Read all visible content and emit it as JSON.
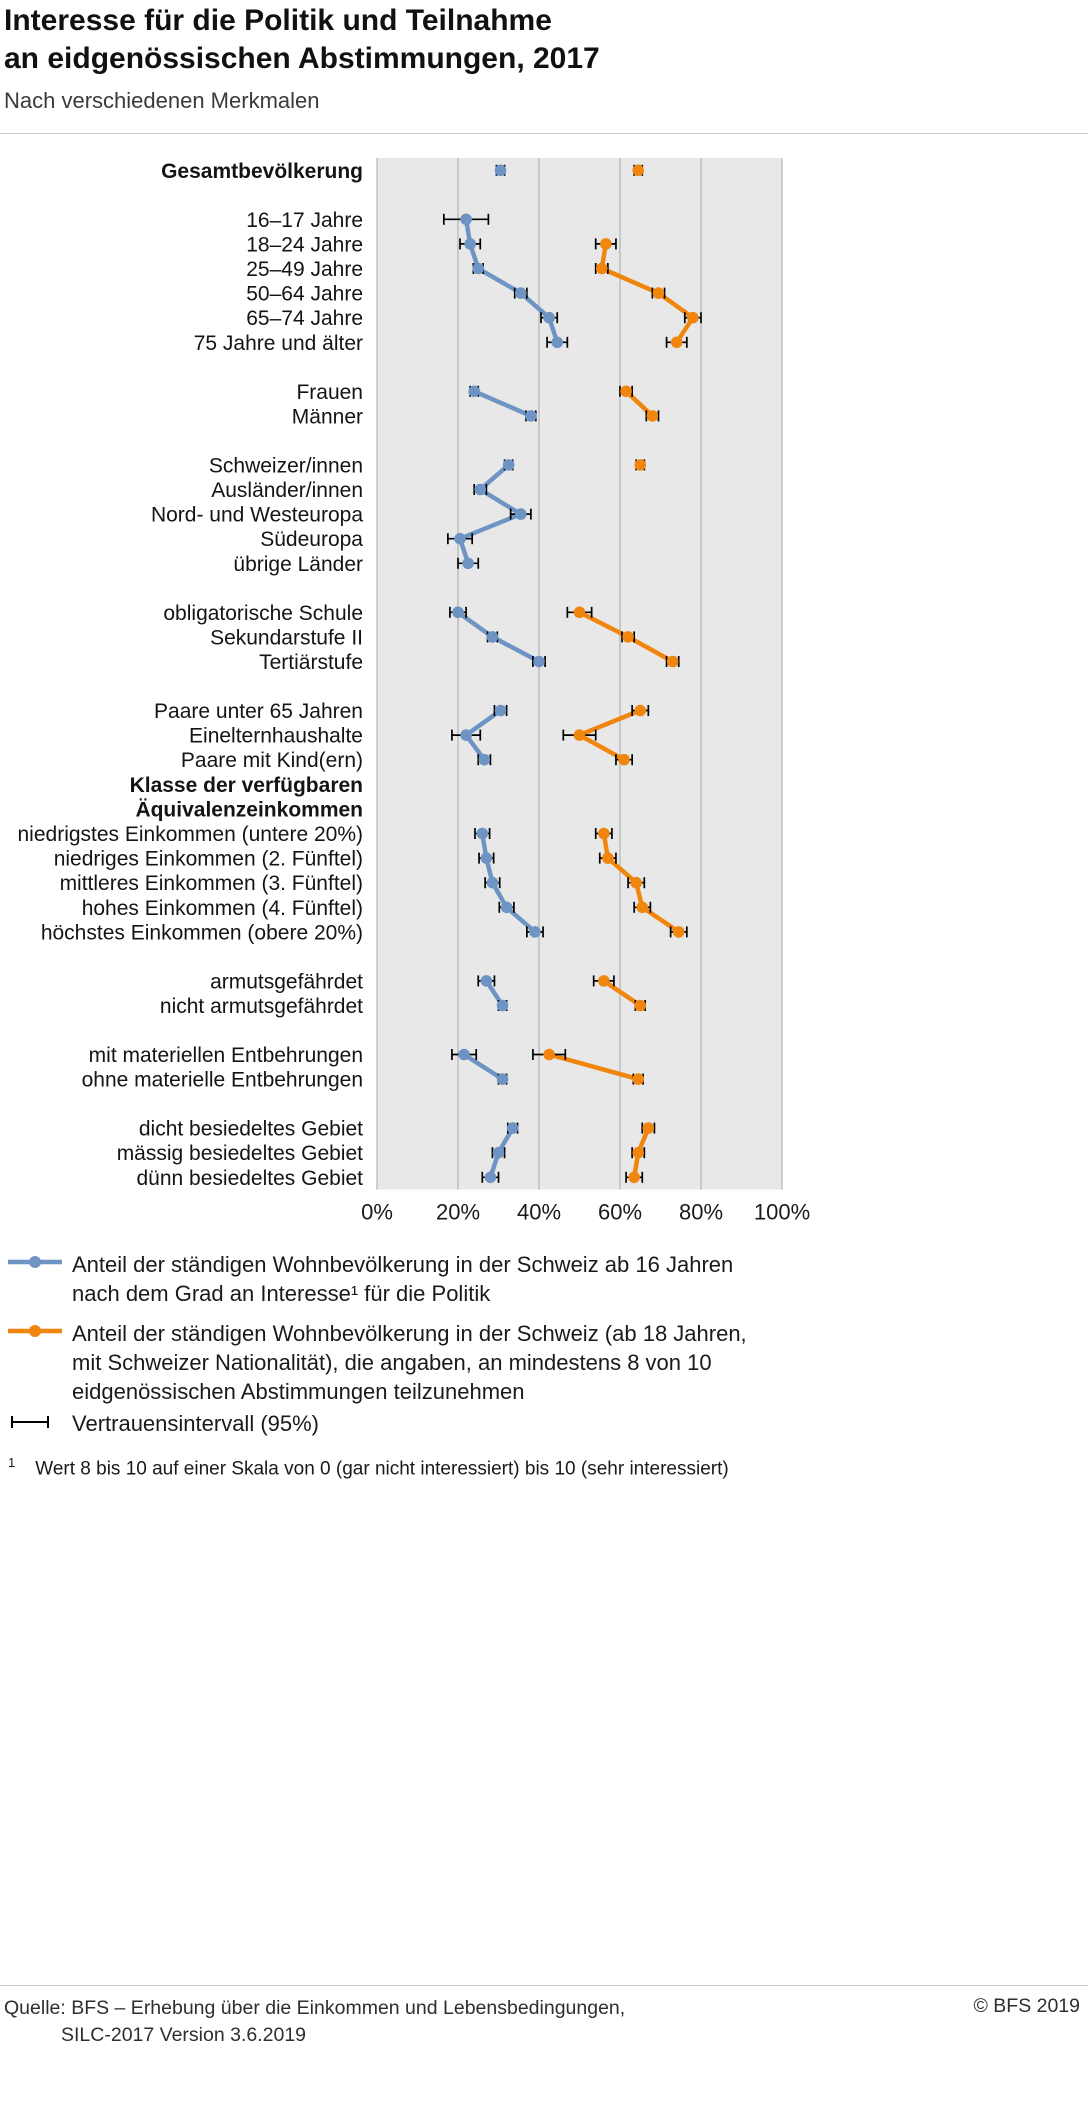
{
  "header": {
    "title_line1": "Interesse für die Politik und Teilnahme",
    "title_line2": "an eidgenössischen Abstimmungen, 2017",
    "subtitle": "Nach verschiedenen Merkmalen"
  },
  "chart_data": {
    "type": "scatter",
    "subtype": "horizontal dot plot with 95% confidence intervals",
    "x_axis": {
      "min": 0,
      "max": 100,
      "ticks": [
        0,
        20,
        40,
        60,
        80,
        100
      ],
      "tick_labels": [
        "0%",
        "20%",
        "40%",
        "60%",
        "80%",
        "100%"
      ],
      "grid": true
    },
    "series": [
      {
        "id": "interesse",
        "color": "#6E94C4"
      },
      {
        "id": "teilnahme",
        "color": "#F0860D"
      }
    ],
    "rows": [
      {
        "type": "data",
        "group": 0,
        "label": "Gesamtbevölkerung",
        "bold": true,
        "interesse": 30.5,
        "interesse_ci": 1.0,
        "teilnahme": 64.5,
        "teilnahme_ci": 1.0
      },
      {
        "type": "spacer"
      },
      {
        "type": "data",
        "group": 1,
        "label": "16–17 Jahre",
        "interesse": 22,
        "interesse_ci": 5.5
      },
      {
        "type": "data",
        "group": 1,
        "label": "18–24 Jahre",
        "interesse": 23,
        "interesse_ci": 2.5,
        "teilnahme": 56.5,
        "teilnahme_ci": 2.5
      },
      {
        "type": "data",
        "group": 1,
        "label": "25–49 Jahre",
        "interesse": 25,
        "interesse_ci": 1.2,
        "teilnahme": 55.5,
        "teilnahme_ci": 1.5
      },
      {
        "type": "data",
        "group": 1,
        "label": "50–64 Jahre",
        "interesse": 35.5,
        "interesse_ci": 1.5,
        "teilnahme": 69.5,
        "teilnahme_ci": 1.5
      },
      {
        "type": "data",
        "group": 1,
        "label": "65–74 Jahre",
        "interesse": 42.5,
        "interesse_ci": 2,
        "teilnahme": 78,
        "teilnahme_ci": 2
      },
      {
        "type": "data",
        "group": 1,
        "label": "75 Jahre und älter",
        "interesse": 44.5,
        "interesse_ci": 2.5,
        "teilnahme": 74,
        "teilnahme_ci": 2.5
      },
      {
        "type": "spacer"
      },
      {
        "type": "data",
        "group": 2,
        "label": "Frauen",
        "interesse": 24,
        "interesse_ci": 1,
        "teilnahme": 61.5,
        "teilnahme_ci": 1.5
      },
      {
        "type": "data",
        "group": 2,
        "label": "Männer",
        "interesse": 38,
        "interesse_ci": 1.2,
        "teilnahme": 68,
        "teilnahme_ci": 1.5
      },
      {
        "type": "spacer"
      },
      {
        "type": "data",
        "group": 3,
        "label": "Schweizer/innen",
        "interesse": 32.5,
        "interesse_ci": 1,
        "teilnahme": 65,
        "teilnahme_ci": 1
      },
      {
        "type": "data",
        "group": 3,
        "label": "Ausländer/innen",
        "interesse": 25.5,
        "interesse_ci": 1.5
      },
      {
        "type": "data",
        "group": 3,
        "label": "Nord- und Westeuropa",
        "interesse": 35.5,
        "interesse_ci": 2.5
      },
      {
        "type": "data",
        "group": 3,
        "label": "Südeuropa",
        "interesse": 20.5,
        "interesse_ci": 3
      },
      {
        "type": "data",
        "group": 3,
        "label": "übrige Länder",
        "interesse": 22.5,
        "interesse_ci": 2.5
      },
      {
        "type": "spacer"
      },
      {
        "type": "data",
        "group": 4,
        "label": "obligatorische Schule",
        "interesse": 20,
        "interesse_ci": 2,
        "teilnahme": 50,
        "teilnahme_ci": 3
      },
      {
        "type": "data",
        "group": 4,
        "label": "Sekundarstufe II",
        "interesse": 28.5,
        "interesse_ci": 1.2,
        "teilnahme": 62,
        "teilnahme_ci": 1.5
      },
      {
        "type": "data",
        "group": 4,
        "label": "Tertiärstufe",
        "interesse": 40,
        "interesse_ci": 1.5,
        "teilnahme": 73,
        "teilnahme_ci": 1.5
      },
      {
        "type": "spacer"
      },
      {
        "type": "data",
        "group": 5,
        "label": "Paare unter 65 Jahren",
        "interesse": 30.5,
        "interesse_ci": 1.5,
        "teilnahme": 65,
        "teilnahme_ci": 2
      },
      {
        "type": "data",
        "group": 5,
        "label": "Einelternhaushalte",
        "interesse": 22,
        "interesse_ci": 3.5,
        "teilnahme": 50,
        "teilnahme_ci": 4
      },
      {
        "type": "data",
        "group": 5,
        "label": "Paare mit Kind(ern)",
        "interesse": 26.5,
        "interesse_ci": 1.5,
        "teilnahme": 61,
        "teilnahme_ci": 2
      },
      {
        "type": "header",
        "lines": [
          "Klasse der verfügbaren",
          "Äquivalenzeinkommen"
        ]
      },
      {
        "type": "data",
        "group": 6,
        "label": "niedrigstes Einkommen (untere 20%)",
        "interesse": 26,
        "interesse_ci": 1.8,
        "teilnahme": 56,
        "teilnahme_ci": 2
      },
      {
        "type": "data",
        "group": 6,
        "label": "niedriges Einkommen (2. Fünftel)",
        "interesse": 27,
        "interesse_ci": 1.8,
        "teilnahme": 57,
        "teilnahme_ci": 2
      },
      {
        "type": "data",
        "group": 6,
        "label": "mittleres Einkommen (3. Fünftel)",
        "interesse": 28.5,
        "interesse_ci": 1.8,
        "teilnahme": 64,
        "teilnahme_ci": 2
      },
      {
        "type": "data",
        "group": 6,
        "label": "hohes Einkommen (4. Fünftel)",
        "interesse": 32,
        "interesse_ci": 1.8,
        "teilnahme": 65.5,
        "teilnahme_ci": 2
      },
      {
        "type": "data",
        "group": 6,
        "label": "höchstes Einkommen (obere 20%)",
        "interesse": 39,
        "interesse_ci": 2,
        "teilnahme": 74.5,
        "teilnahme_ci": 2
      },
      {
        "type": "spacer"
      },
      {
        "type": "data",
        "group": 7,
        "label": "armutsgefährdet",
        "interesse": 27,
        "interesse_ci": 2,
        "teilnahme": 56,
        "teilnahme_ci": 2.5
      },
      {
        "type": "data",
        "group": 7,
        "label": "nicht armutsgefährdet",
        "interesse": 31,
        "interesse_ci": 1,
        "teilnahme": 65,
        "teilnahme_ci": 1.2
      },
      {
        "type": "spacer"
      },
      {
        "type": "data",
        "group": 8,
        "label": "mit materiellen Entbehrungen",
        "interesse": 21.5,
        "interesse_ci": 3,
        "teilnahme": 42.5,
        "teilnahme_ci": 4
      },
      {
        "type": "data",
        "group": 8,
        "label": "ohne materielle Entbehrungen",
        "interesse": 31,
        "interesse_ci": 1,
        "teilnahme": 64.5,
        "teilnahme_ci": 1.2
      },
      {
        "type": "spacer"
      },
      {
        "type": "data",
        "group": 9,
        "label": "dicht besiedeltes Gebiet",
        "interesse": 33.5,
        "interesse_ci": 1.2,
        "teilnahme": 67,
        "teilnahme_ci": 1.5
      },
      {
        "type": "data",
        "group": 9,
        "label": "mässig besiedeltes Gebiet",
        "interesse": 30,
        "interesse_ci": 1.5,
        "teilnahme": 64.5,
        "teilnahme_ci": 1.5
      },
      {
        "type": "data",
        "group": 9,
        "label": "dünn besiedeltes Gebiet",
        "interesse": 28,
        "interesse_ci": 2,
        "teilnahme": 63.5,
        "teilnahme_ci": 2
      }
    ]
  },
  "legend": {
    "items": [
      {
        "series": "interesse",
        "lines": [
          "Anteil der ständigen Wohnbevölkerung in der Schweiz ab 16 Jahren",
          "nach dem Grad an Interesse¹ für die Politik"
        ]
      },
      {
        "series": "teilnahme",
        "lines": [
          "Anteil der ständigen Wohnbevölkerung in der Schweiz (ab 18 Jahren,",
          "mit Schweizer Nationalität), die angaben, an mindestens 8 von 10",
          "eidgenössischen Abstimmungen teilzunehmen"
        ]
      },
      {
        "series": "ci",
        "lines": [
          "Vertrauensintervall (95%)"
        ]
      }
    ]
  },
  "footnote": {
    "marker": "1",
    "text": "Wert 8 bis 10 auf einer Skala von 0 (gar nicht interessiert) bis 10 (sehr interessiert)"
  },
  "footer": {
    "source_line1": "Quelle: BFS – Erhebung über die Einkommen und Lebensbedingungen,",
    "source_line2": "SILC-2017 Version 3.6.2019",
    "copyright": "© BFS 2019"
  }
}
